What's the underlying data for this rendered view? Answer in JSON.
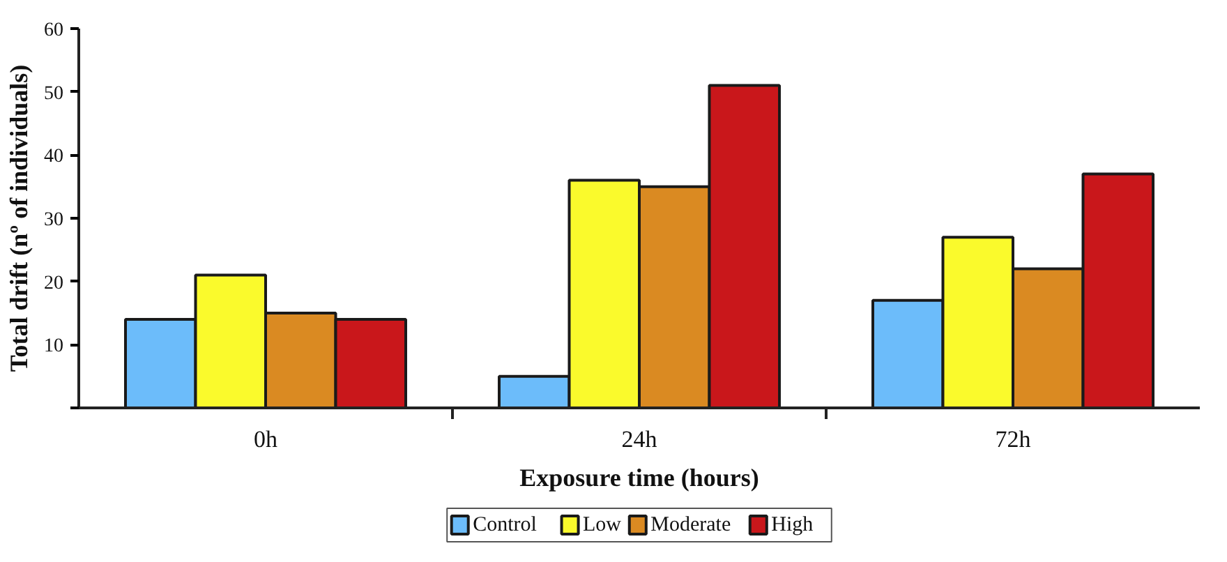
{
  "chart_data": {
    "type": "bar",
    "xlabel": "Exposure time (hours)",
    "ylabel": "Total drift (nº of individuals)",
    "categories": [
      "0h",
      "24h",
      "72h"
    ],
    "series": [
      {
        "name": "Control",
        "color": "#6cbcfa",
        "values": [
          14,
          5,
          17
        ]
      },
      {
        "name": "Low",
        "color": "#fafa2c",
        "values": [
          21,
          36,
          27
        ]
      },
      {
        "name": "Moderate",
        "color": "#da8a22",
        "values": [
          15,
          35,
          22
        ]
      },
      {
        "name": "High",
        "color": "#c9171b",
        "values": [
          14,
          51,
          37
        ]
      }
    ],
    "ylim": [
      0,
      60
    ],
    "yticks": [
      {
        "value": 0,
        "label": null
      },
      10,
      20,
      30,
      40,
      50,
      60
    ],
    "grid": false,
    "legend": "bottom"
  }
}
